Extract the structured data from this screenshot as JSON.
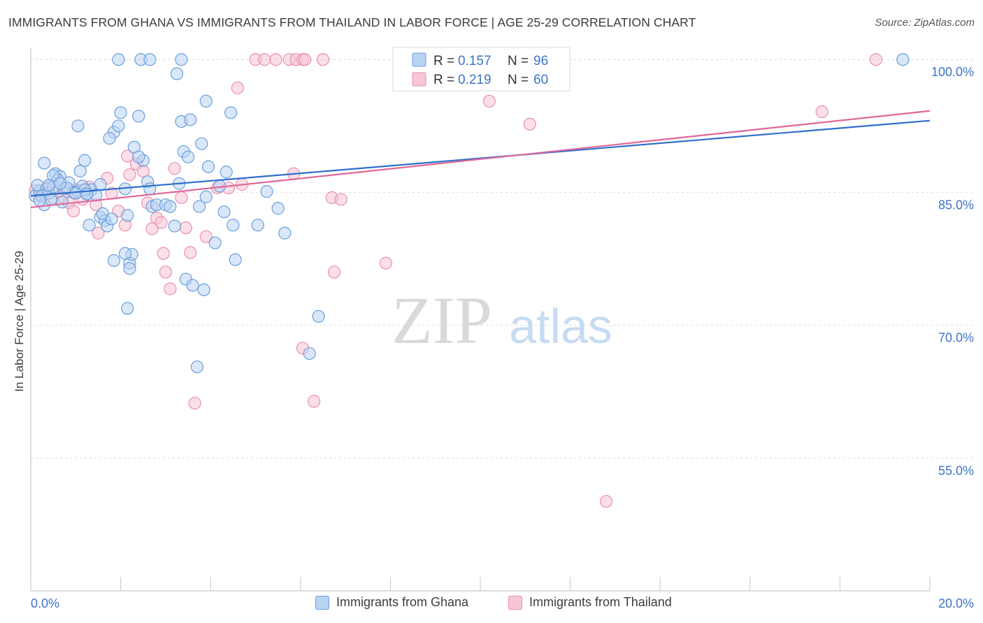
{
  "title": "IMMIGRANTS FROM GHANA VS IMMIGRANTS FROM THAILAND IN LABOR FORCE | AGE 25-29 CORRELATION CHART",
  "source": "Source: ZipAtlas.com",
  "watermark": {
    "zip": "ZIP",
    "atlas": "atlas"
  },
  "colors": {
    "ghana_fill": "#b9d3f3",
    "ghana_stroke": "#6a9fdc",
    "ghana_line": "#2f6fcc",
    "thailand_fill": "#f7c5d6",
    "thailand_stroke": "#ea8fb0",
    "thailand_line": "#e0679a",
    "value_text": "#3d74c8",
    "axis_text": "#3d74c8"
  },
  "stats_legend": [
    {
      "r_label": "R = ",
      "r_value": "0.157",
      "n_label": "N = ",
      "n_value": "96"
    },
    {
      "r_label": "R = ",
      "r_value": "0.219",
      "n_label": "N = ",
      "n_value": "60"
    }
  ],
  "chart_data": {
    "type": "scatter",
    "title": "IMMIGRANTS FROM GHANA VS IMMIGRANTS FROM THAILAND IN LABOR FORCE | AGE 25-29 CORRELATION CHART",
    "xlabel": "",
    "ylabel": "In Labor Force | Age 25-29",
    "xlim": [
      0,
      20
    ],
    "ylim": [
      40,
      101.2
    ],
    "x_tick_labels": [
      "0.0%",
      "20.0%"
    ],
    "y_ticks": [
      55,
      70,
      85,
      100
    ],
    "y_tick_labels": [
      "55.0%",
      "70.0%",
      "85.0%",
      "100.0%"
    ],
    "grid": true,
    "legend_position": "bottom",
    "series": [
      {
        "name": "Immigrants from Ghana",
        "r": 0.157,
        "n": 96,
        "trend": {
          "x": [
            0,
            20
          ],
          "y": [
            84.6,
            93.1
          ]
        },
        "points": [
          [
            0.1,
            84.6
          ],
          [
            0.2,
            85.2
          ],
          [
            0.3,
            83.6
          ],
          [
            0.15,
            85.8
          ],
          [
            0.35,
            85.4
          ],
          [
            0.25,
            84.6
          ],
          [
            0.4,
            84.9
          ],
          [
            0.5,
            85.6
          ],
          [
            0.45,
            84.2
          ],
          [
            0.55,
            87.1
          ],
          [
            0.65,
            86.8
          ],
          [
            0.75,
            85.4
          ],
          [
            0.85,
            86.1
          ],
          [
            0.95,
            85.0
          ],
          [
            0.7,
            83.9
          ],
          [
            0.6,
            86.4
          ],
          [
            0.8,
            85.5
          ],
          [
            1.05,
            85.1
          ],
          [
            1.15,
            85.7
          ],
          [
            1.25,
            84.9
          ],
          [
            1.35,
            85.3
          ],
          [
            0.5,
            86.9
          ],
          [
            0.65,
            86.0
          ],
          [
            0.2,
            84.1
          ],
          [
            0.3,
            88.3
          ],
          [
            0.4,
            85.8
          ],
          [
            1.2,
            88.6
          ],
          [
            1.1,
            87.4
          ],
          [
            1.2,
            85.3
          ],
          [
            1.55,
            85.9
          ],
          [
            1.45,
            84.7
          ],
          [
            1.0,
            84.9
          ],
          [
            1.25,
            84.8
          ],
          [
            1.05,
            92.5
          ],
          [
            1.55,
            82.2
          ],
          [
            1.65,
            81.8
          ],
          [
            1.7,
            81.2
          ],
          [
            1.6,
            82.6
          ],
          [
            1.8,
            82.0
          ],
          [
            1.3,
            81.3
          ],
          [
            1.85,
            91.8
          ],
          [
            1.75,
            91.1
          ],
          [
            1.95,
            92.5
          ],
          [
            2.1,
            85.4
          ],
          [
            2.15,
            82.4
          ],
          [
            2.3,
            90.1
          ],
          [
            2.5,
            88.6
          ],
          [
            2.4,
            89.0
          ],
          [
            2.6,
            86.2
          ],
          [
            2.65,
            85.4
          ],
          [
            2.7,
            83.4
          ],
          [
            2.8,
            83.6
          ],
          [
            3.0,
            83.6
          ],
          [
            3.1,
            83.4
          ],
          [
            3.2,
            81.2
          ],
          [
            3.3,
            86.0
          ],
          [
            3.4,
            89.6
          ],
          [
            3.5,
            89.0
          ],
          [
            3.35,
            93.0
          ],
          [
            3.55,
            93.2
          ],
          [
            3.8,
            90.5
          ],
          [
            3.95,
            87.9
          ],
          [
            3.9,
            84.5
          ],
          [
            3.75,
            83.4
          ],
          [
            4.2,
            85.7
          ],
          [
            4.3,
            82.8
          ],
          [
            4.35,
            87.3
          ],
          [
            4.45,
            94.0
          ],
          [
            4.5,
            81.3
          ],
          [
            4.55,
            77.4
          ],
          [
            4.1,
            79.3
          ],
          [
            5.05,
            81.3
          ],
          [
            5.25,
            85.1
          ],
          [
            5.5,
            83.2
          ],
          [
            5.65,
            80.4
          ],
          [
            6.2,
            66.8
          ],
          [
            6.4,
            71.0
          ],
          [
            2.2,
            77.0
          ],
          [
            2.25,
            78.0
          ],
          [
            1.85,
            77.3
          ],
          [
            2.1,
            78.1
          ],
          [
            2.2,
            76.4
          ],
          [
            3.45,
            75.2
          ],
          [
            3.6,
            74.5
          ],
          [
            3.85,
            74.0
          ],
          [
            2.15,
            71.9
          ],
          [
            3.7,
            65.3
          ],
          [
            2.0,
            94.0
          ],
          [
            2.4,
            93.6
          ],
          [
            2.45,
            100.0
          ],
          [
            2.65,
            100.0
          ],
          [
            1.95,
            100.0
          ],
          [
            3.35,
            100.0
          ],
          [
            3.25,
            98.4
          ],
          [
            3.9,
            95.3
          ],
          [
            19.4,
            100.0
          ]
        ]
      },
      {
        "name": "Immigrants from Thailand",
        "r": 0.219,
        "n": 60,
        "trend": {
          "x": [
            0,
            20
          ],
          "y": [
            83.3,
            94.2
          ]
        },
        "points": [
          [
            0.1,
            85.2
          ],
          [
            0.2,
            84.7
          ],
          [
            0.3,
            84.9
          ],
          [
            0.4,
            85.6
          ],
          [
            0.5,
            84.3
          ],
          [
            0.6,
            85.1
          ],
          [
            0.7,
            84.5
          ],
          [
            0.85,
            83.8
          ],
          [
            0.95,
            82.9
          ],
          [
            1.0,
            85.3
          ],
          [
            1.15,
            84.2
          ],
          [
            1.3,
            85.6
          ],
          [
            1.45,
            83.6
          ],
          [
            1.5,
            80.4
          ],
          [
            1.7,
            86.6
          ],
          [
            1.8,
            84.9
          ],
          [
            1.95,
            82.9
          ],
          [
            2.1,
            81.3
          ],
          [
            2.15,
            89.1
          ],
          [
            2.2,
            87.0
          ],
          [
            2.35,
            88.2
          ],
          [
            2.5,
            87.4
          ],
          [
            2.6,
            83.8
          ],
          [
            2.7,
            80.9
          ],
          [
            2.8,
            82.1
          ],
          [
            2.9,
            81.6
          ],
          [
            2.95,
            78.1
          ],
          [
            3.0,
            76.0
          ],
          [
            3.1,
            74.1
          ],
          [
            3.2,
            87.7
          ],
          [
            3.35,
            84.4
          ],
          [
            3.45,
            81.0
          ],
          [
            3.55,
            78.2
          ],
          [
            3.65,
            61.2
          ],
          [
            3.9,
            80.0
          ],
          [
            4.15,
            85.5
          ],
          [
            4.4,
            85.5
          ],
          [
            4.6,
            96.8
          ],
          [
            4.7,
            85.9
          ],
          [
            5.0,
            100.0
          ],
          [
            5.2,
            100.0
          ],
          [
            5.45,
            100.0
          ],
          [
            5.75,
            100.0
          ],
          [
            5.9,
            100.0
          ],
          [
            6.05,
            100.0
          ],
          [
            6.5,
            100.0
          ],
          [
            6.1,
            100.0
          ],
          [
            5.85,
            87.1
          ],
          [
            6.05,
            67.4
          ],
          [
            6.3,
            61.4
          ],
          [
            6.7,
            84.4
          ],
          [
            6.9,
            84.2
          ],
          [
            6.75,
            76.0
          ],
          [
            7.9,
            77.0
          ],
          [
            9.7,
            100.0
          ],
          [
            10.2,
            95.3
          ],
          [
            11.1,
            92.7
          ],
          [
            12.8,
            50.1
          ],
          [
            17.6,
            94.1
          ],
          [
            18.8,
            100.0
          ]
        ]
      }
    ]
  },
  "bottom_legend": [
    "Immigrants from Ghana",
    "Immigrants from Thailand"
  ]
}
